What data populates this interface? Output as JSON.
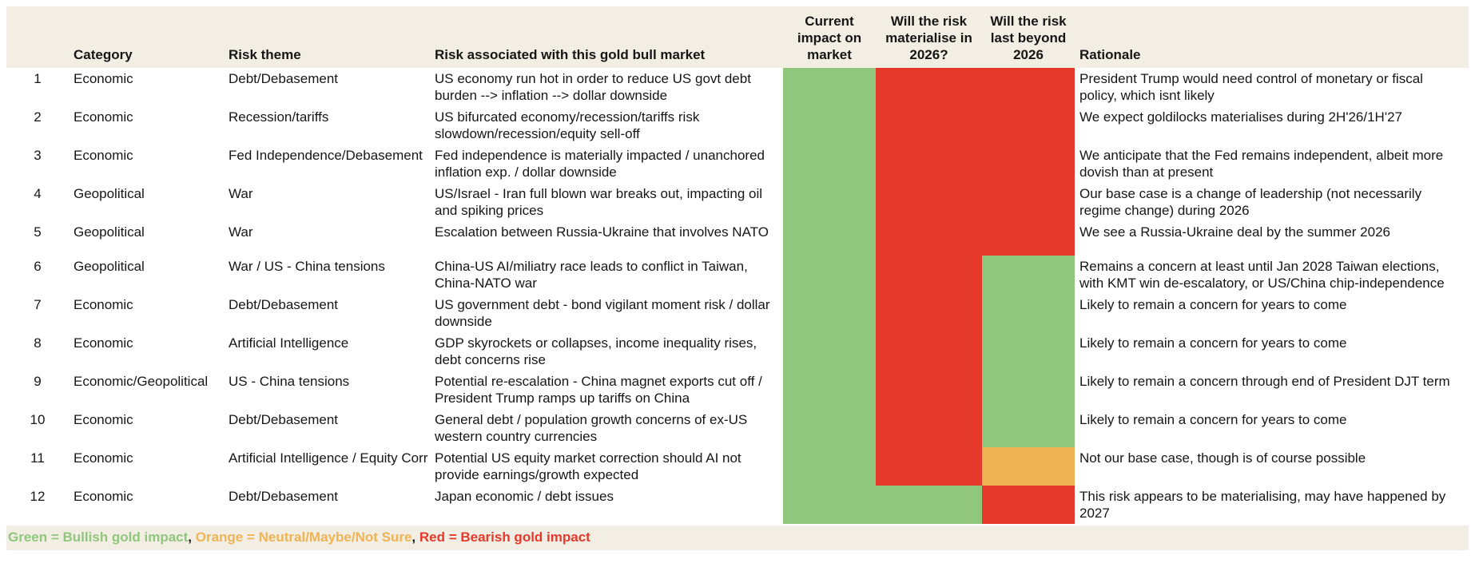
{
  "colors": {
    "green": "#90C77D",
    "red": "#E5392B",
    "orange": "#F0B354",
    "header_bg": "#F2EEE3",
    "text": "#161616"
  },
  "columns": {
    "num": "",
    "category": "Category",
    "theme": "Risk theme",
    "risk": "Risk associated with this gold bull market",
    "impact": "Current impact on market",
    "materialise": "Will the risk materialise in 2026?",
    "beyond": "Will the risk last beyond 2026",
    "rationale": "Rationale"
  },
  "rows": [
    {
      "num": "1",
      "category": "Economic",
      "theme": "Debt/Debasement",
      "risk": "US economy run hot in order to reduce US govt debt burden --> inflation --> dollar downside",
      "impact": "green",
      "materialise": "red",
      "beyond": "red",
      "rationale": "President Trump would need control of monetary or fiscal policy, which isnt likely"
    },
    {
      "num": "2",
      "category": "Economic",
      "theme": "Recession/tariffs",
      "risk": "US bifurcated economy/recession/tariffs risk slowdown/recession/equity sell-off",
      "impact": "green",
      "materialise": "red",
      "beyond": "red",
      "rationale": "We expect goldilocks materialises during 2H'26/1H'27"
    },
    {
      "num": "3",
      "category": "Economic",
      "theme": "Fed Independence/Debasement",
      "risk": "Fed independence is materially impacted / unanchored inflation exp. / dollar downside",
      "impact": "green",
      "materialise": "red",
      "beyond": "red",
      "rationale": "We anticipate that the Fed remains independent, albeit more dovish than at present"
    },
    {
      "num": "4",
      "category": "Geopolitical",
      "theme": "War",
      "risk": "US/Israel - Iran full blown war breaks out, impacting oil and spiking prices",
      "impact": "green",
      "materialise": "red",
      "beyond": "red",
      "rationale": "Our base case is a change of leadership (not necessarily regime change) during 2026"
    },
    {
      "num": "5",
      "category": "Geopolitical",
      "theme": "War",
      "risk": "Escalation between Russia-Ukraine that involves NATO",
      "impact": "green",
      "materialise": "red",
      "beyond": "red",
      "rationale": "We see a Russia-Ukraine deal by the summer 2026"
    },
    {
      "num": "6",
      "category": "Geopolitical",
      "theme": "War / US - China tensions",
      "risk": "China-US AI/miliatry race leads to conflict in Taiwan, China-NATO war",
      "impact": "green",
      "materialise": "red",
      "beyond": "green",
      "rationale": "Remains a concern at least until Jan 2028 Taiwan elections, with KMT win de-escalatory, or US/China chip-independence"
    },
    {
      "num": "7",
      "category": "Economic",
      "theme": "Debt/Debasement",
      "risk": "US government debt - bond vigilant moment risk / dollar downside",
      "impact": "green",
      "materialise": "red",
      "beyond": "green",
      "rationale": "Likely to remain a concern for years to come"
    },
    {
      "num": "8",
      "category": "Economic",
      "theme": "Artificial Intelligence",
      "risk": "GDP skyrockets or collapses, income inequality rises, debt concerns rise",
      "impact": "green",
      "materialise": "red",
      "beyond": "green",
      "rationale": "Likely to remain a concern for years to come"
    },
    {
      "num": "9",
      "category": "Economic/Geopolitical",
      "theme": "US - China tensions",
      "risk": "Potential re-escalation - China magnet exports cut off / President Trump ramps up tariffs on China",
      "impact": "green",
      "materialise": "red",
      "beyond": "green",
      "rationale": "Likely to remain a concern through end of President DJT term"
    },
    {
      "num": "10",
      "category": "Economic",
      "theme": "Debt/Debasement",
      "risk": "General debt / population growth concerns of ex-US western country currencies",
      "impact": "green",
      "materialise": "red",
      "beyond": "green",
      "rationale": "Likely to remain a concern for years to come"
    },
    {
      "num": "11",
      "category": "Economic",
      "theme": "Artificial Intelligence / Equity Corr",
      "risk": "Potential US equity market correction should AI not provide earnings/growth expected",
      "impact": "green",
      "materialise": "red",
      "beyond": "orange",
      "rationale": "Not our base case, though is of course possible"
    },
    {
      "num": "12",
      "category": "Economic",
      "theme": "Debt/Debasement",
      "risk": "Japan economic / debt issues",
      "impact": "green",
      "materialise": "green",
      "beyond": "red",
      "rationale": "This risk appears to be materialising, may have happened by 2027"
    }
  ],
  "legend": [
    {
      "text": "Green = Bullish gold impact",
      "color": "green"
    },
    {
      "text": ", ",
      "color": "text"
    },
    {
      "text": "Orange = Neutral/Maybe/Not Sure",
      "color": "orange"
    },
    {
      "text": ", ",
      "color": "text"
    },
    {
      "text": "Red = Bearish gold impact",
      "color": "red"
    }
  ]
}
